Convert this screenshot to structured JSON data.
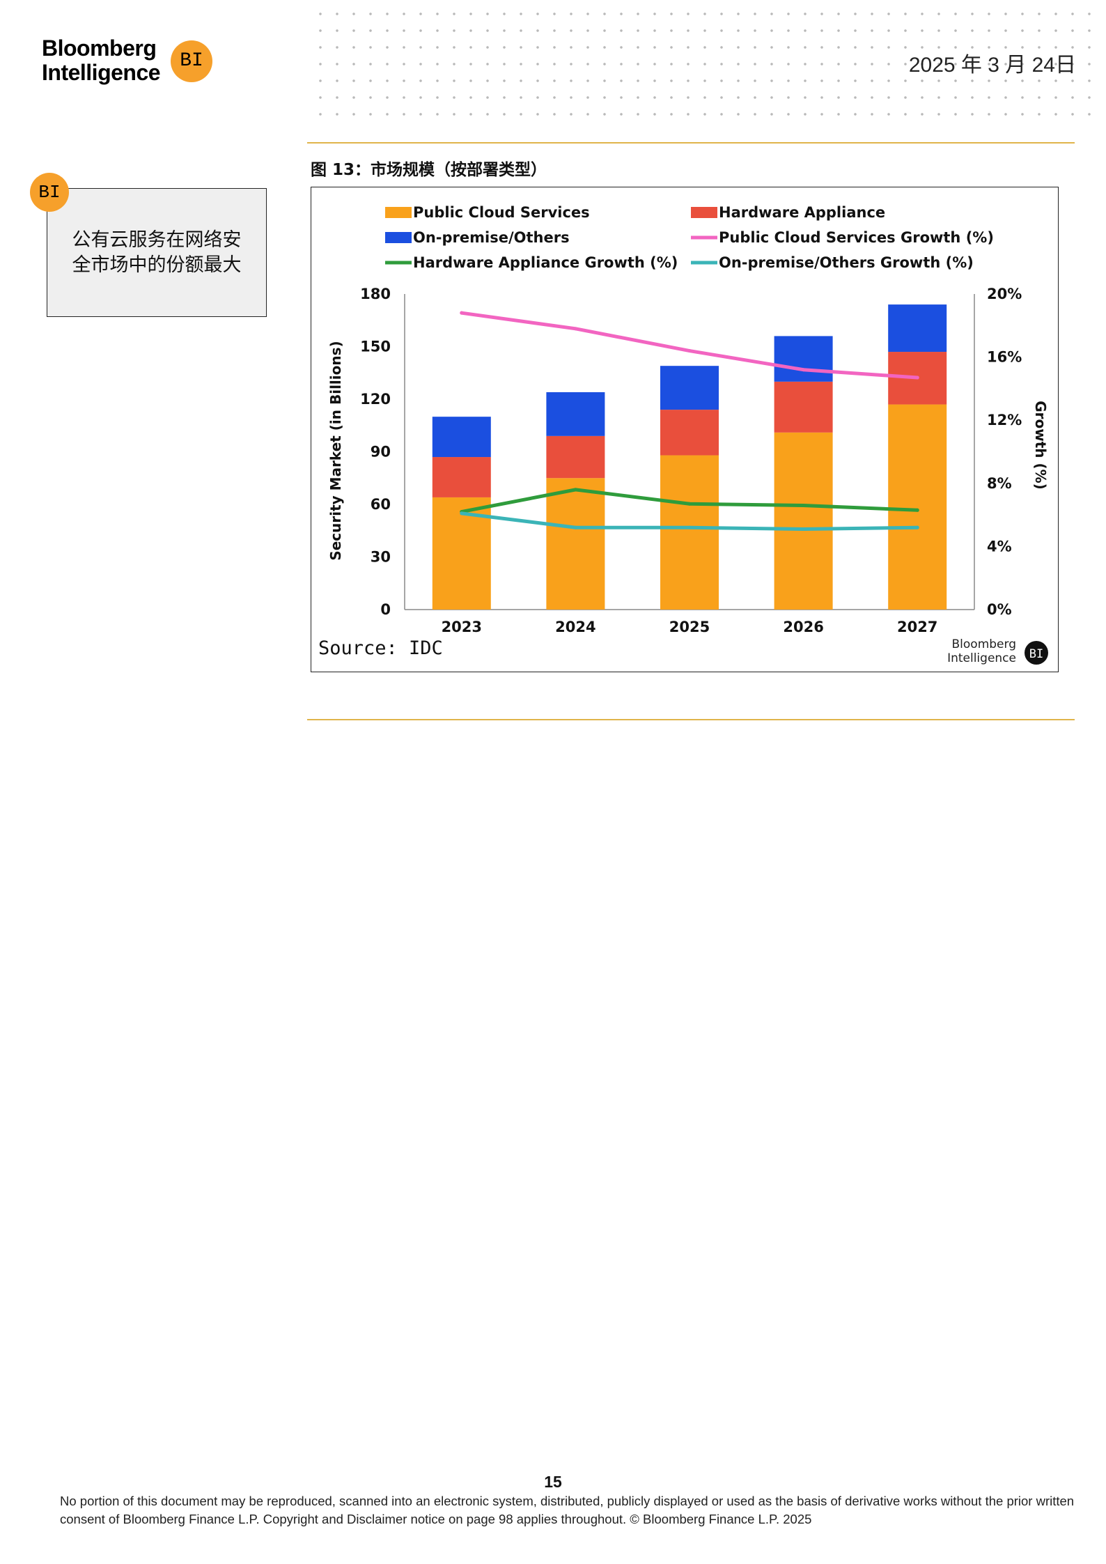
{
  "header": {
    "brand_line1": "Bloomberg",
    "brand_line2": "Intelligence",
    "brand_badge": "BI",
    "date": "2025 年 3 月 24日"
  },
  "sidebar": {
    "badge": "BI",
    "callout": "公有云服务在网络安全市场中的份额最大"
  },
  "figure": {
    "title": "图 13：市场规模（按部署类型）"
  },
  "chart_data": {
    "type": "bar",
    "stacked": true,
    "categories": [
      "2023",
      "2024",
      "2025",
      "2026",
      "2027"
    ],
    "series": [
      {
        "name": "Public Cloud Services",
        "axis": "left",
        "color": "#f9a11b",
        "values": [
          64,
          75,
          88,
          101,
          117
        ]
      },
      {
        "name": "Hardware Appliance",
        "axis": "left",
        "color": "#e94f3c",
        "values": [
          23,
          24,
          26,
          29,
          30
        ]
      },
      {
        "name": "On-premise/Others",
        "axis": "left",
        "color": "#1b4fe0",
        "values": [
          23,
          25,
          25,
          26,
          27
        ]
      }
    ],
    "line_series": [
      {
        "name": "Public Cloud Services Growth (%)",
        "axis": "right",
        "color": "#f265c1",
        "values": [
          18.8,
          17.8,
          16.4,
          15.2,
          14.7
        ]
      },
      {
        "name": "Hardware Appliance Growth (%)",
        "axis": "right",
        "color": "#2f9c3c",
        "values": [
          6.2,
          7.6,
          6.7,
          6.6,
          6.3
        ]
      },
      {
        "name": "On-premise/Others Growth (%)",
        "axis": "right",
        "color": "#3bb4b7",
        "values": [
          6.1,
          5.2,
          5.2,
          5.1,
          5.2
        ]
      }
    ],
    "ylabel": "Security Market (in Billions)",
    "y2label": "Growth (%)",
    "ylim": [
      0,
      180
    ],
    "y_ticks": [
      "0",
      "30",
      "60",
      "90",
      "120",
      "150",
      "180"
    ],
    "y2lim": [
      0,
      20
    ],
    "y2_ticks": [
      "0%",
      "4%",
      "8%",
      "12%",
      "16%",
      "20%"
    ],
    "legend_position": "top",
    "source": "Source: IDC",
    "watermark_line1": "Bloomberg",
    "watermark_line2": "Intelligence",
    "watermark_badge": "BI"
  },
  "footer": {
    "page_number": "15",
    "disclaimer": "No portion of this document may be reproduced, scanned into an electronic system, distributed, publicly displayed or used as the basis of derivative works without the prior written consent of Bloomberg Finance L.P. Copyright and Disclaimer notice on page 98 applies throughout. © Bloomberg Finance L.P. 2025"
  }
}
